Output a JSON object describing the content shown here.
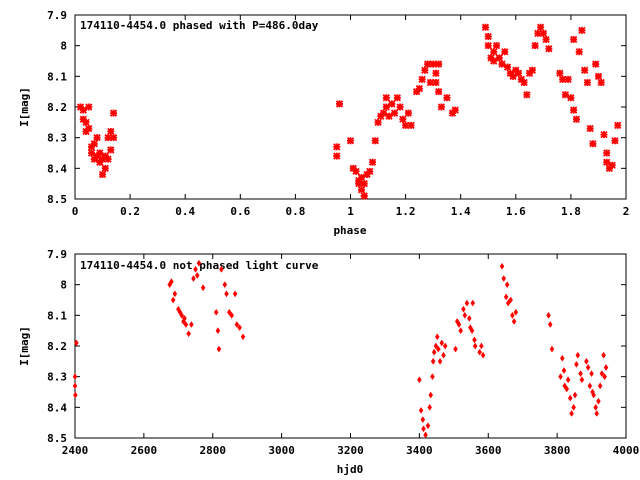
{
  "chart_data": [
    {
      "type": "scatter",
      "title": "174110-4454.0 phased with P=486.0day",
      "xlabel": "phase",
      "ylabel": "I[mag]",
      "xlim": [
        0,
        2
      ],
      "ylim": [
        8.5,
        7.9
      ],
      "xticks": [
        "0",
        "0.2",
        "0.4",
        "0.6",
        "0.8",
        "1",
        "1.2",
        "1.4",
        "1.6",
        "1.8",
        "2"
      ],
      "xtick_values": [
        0,
        0.2,
        0.4,
        0.6,
        0.8,
        1.0,
        1.2,
        1.4,
        1.6,
        1.8,
        2.0
      ],
      "yticks": [
        "7.9",
        "8",
        "8.1",
        "8.2",
        "8.3",
        "8.4",
        "8.5"
      ],
      "ytick_values": [
        7.9,
        8.0,
        8.1,
        8.2,
        8.3,
        8.4,
        8.5
      ],
      "grid": false,
      "marker_color": "#ff0000",
      "points": [
        [
          0.02,
          8.2
        ],
        [
          0.03,
          8.24
        ],
        [
          0.03,
          8.21
        ],
        [
          0.04,
          8.25
        ],
        [
          0.04,
          8.28
        ],
        [
          0.05,
          8.27
        ],
        [
          0.05,
          8.2
        ],
        [
          0.06,
          8.33
        ],
        [
          0.06,
          8.35
        ],
        [
          0.07,
          8.37
        ],
        [
          0.07,
          8.32
        ],
        [
          0.08,
          8.3
        ],
        [
          0.08,
          8.36
        ],
        [
          0.09,
          8.38
        ],
        [
          0.09,
          8.35
        ],
        [
          0.1,
          8.42
        ],
        [
          0.1,
          8.37
        ],
        [
          0.11,
          8.36
        ],
        [
          0.11,
          8.4
        ],
        [
          0.12,
          8.37
        ],
        [
          0.12,
          8.3
        ],
        [
          0.13,
          8.34
        ],
        [
          0.14,
          8.3
        ],
        [
          0.13,
          8.28
        ],
        [
          0.14,
          8.22
        ],
        [
          0.95,
          8.33
        ],
        [
          0.95,
          8.36
        ],
        [
          0.96,
          8.19
        ],
        [
          1.0,
          8.31
        ],
        [
          1.01,
          8.4
        ],
        [
          1.02,
          8.41
        ],
        [
          1.03,
          8.44
        ],
        [
          1.03,
          8.45
        ],
        [
          1.04,
          8.47
        ],
        [
          1.04,
          8.43
        ],
        [
          1.05,
          8.49
        ],
        [
          1.05,
          8.45
        ],
        [
          1.06,
          8.42
        ],
        [
          1.07,
          8.41
        ],
        [
          1.08,
          8.38
        ],
        [
          1.09,
          8.31
        ],
        [
          1.1,
          8.25
        ],
        [
          1.11,
          8.23
        ],
        [
          1.12,
          8.22
        ],
        [
          1.13,
          8.2
        ],
        [
          1.13,
          8.17
        ],
        [
          1.14,
          8.23
        ],
        [
          1.15,
          8.19
        ],
        [
          1.16,
          8.22
        ],
        [
          1.17,
          8.17
        ],
        [
          1.18,
          8.2
        ],
        [
          1.19,
          8.24
        ],
        [
          1.2,
          8.26
        ],
        [
          1.21,
          8.22
        ],
        [
          1.22,
          8.26
        ],
        [
          1.24,
          8.15
        ],
        [
          1.25,
          8.14
        ],
        [
          1.26,
          8.11
        ],
        [
          1.27,
          8.08
        ],
        [
          1.28,
          8.06
        ],
        [
          1.29,
          8.12
        ],
        [
          1.3,
          8.06
        ],
        [
          1.31,
          8.09
        ],
        [
          1.31,
          8.12
        ],
        [
          1.32,
          8.06
        ],
        [
          1.32,
          8.15
        ],
        [
          1.33,
          8.2
        ],
        [
          1.35,
          8.17
        ],
        [
          1.37,
          8.22
        ],
        [
          1.38,
          8.21
        ],
        [
          1.49,
          7.94
        ],
        [
          1.5,
          7.97
        ],
        [
          1.5,
          8.0
        ],
        [
          1.51,
          8.04
        ],
        [
          1.52,
          8.05
        ],
        [
          1.52,
          8.02
        ],
        [
          1.53,
          8.0
        ],
        [
          1.54,
          8.04
        ],
        [
          1.55,
          8.06
        ],
        [
          1.56,
          8.02
        ],
        [
          1.57,
          8.07
        ],
        [
          1.58,
          8.09
        ],
        [
          1.59,
          8.1
        ],
        [
          1.6,
          8.08
        ],
        [
          1.61,
          8.09
        ],
        [
          1.62,
          8.11
        ],
        [
          1.63,
          8.12
        ],
        [
          1.64,
          8.16
        ],
        [
          1.65,
          8.09
        ],
        [
          1.66,
          8.08
        ],
        [
          1.67,
          8.0
        ],
        [
          1.68,
          7.96
        ],
        [
          1.69,
          7.94
        ],
        [
          1.7,
          7.96
        ],
        [
          1.71,
          7.98
        ],
        [
          1.72,
          8.01
        ],
        [
          1.76,
          8.09
        ],
        [
          1.77,
          8.11
        ],
        [
          1.78,
          8.16
        ],
        [
          1.79,
          8.11
        ],
        [
          1.8,
          8.17
        ],
        [
          1.81,
          8.21
        ],
        [
          1.82,
          8.24
        ],
        [
          1.81,
          7.98
        ],
        [
          1.83,
          8.02
        ],
        [
          1.84,
          7.95
        ],
        [
          1.85,
          8.08
        ],
        [
          1.86,
          8.12
        ],
        [
          1.87,
          8.27
        ],
        [
          1.88,
          8.32
        ],
        [
          1.89,
          8.06
        ],
        [
          1.9,
          8.1
        ],
        [
          1.91,
          8.12
        ],
        [
          1.92,
          8.29
        ],
        [
          1.93,
          8.35
        ],
        [
          1.93,
          8.38
        ],
        [
          1.94,
          8.4
        ],
        [
          1.95,
          8.39
        ],
        [
          1.96,
          8.31
        ],
        [
          1.97,
          8.26
        ]
      ]
    },
    {
      "type": "scatter",
      "title": "174110-4454.0 not phased light curve",
      "xlabel": "hjd0",
      "ylabel": "I[mag]",
      "xlim": [
        2400,
        4000
      ],
      "ylim": [
        8.5,
        7.9
      ],
      "xticks": [
        "2400",
        "2600",
        "2800",
        "3000",
        "3200",
        "3400",
        "3600",
        "3800",
        "4000"
      ],
      "xtick_values": [
        2400,
        2600,
        2800,
        3000,
        3200,
        3400,
        3600,
        3800,
        4000
      ],
      "yticks": [
        "7.9",
        "8",
        "8.1",
        "8.2",
        "8.3",
        "8.4",
        "8.5"
      ],
      "ytick_values": [
        7.9,
        8.0,
        8.1,
        8.2,
        8.3,
        8.4,
        8.5
      ],
      "grid": false,
      "marker_color": "#ff0000",
      "points": [
        [
          2400,
          8.3
        ],
        [
          2400,
          8.33
        ],
        [
          2401,
          8.36
        ],
        [
          2404,
          8.19
        ],
        [
          2675,
          8.0
        ],
        [
          2680,
          7.99
        ],
        [
          2685,
          8.05
        ],
        [
          2690,
          8.03
        ],
        [
          2700,
          8.08
        ],
        [
          2705,
          8.09
        ],
        [
          2710,
          8.1
        ],
        [
          2715,
          8.12
        ],
        [
          2718,
          8.11
        ],
        [
          2722,
          8.13
        ],
        [
          2730,
          8.16
        ],
        [
          2738,
          8.13
        ],
        [
          2744,
          7.98
        ],
        [
          2750,
          7.95
        ],
        [
          2755,
          7.97
        ],
        [
          2760,
          7.93
        ],
        [
          2772,
          8.01
        ],
        [
          2810,
          8.09
        ],
        [
          2815,
          8.15
        ],
        [
          2818,
          8.21
        ],
        [
          2825,
          7.95
        ],
        [
          2835,
          8.0
        ],
        [
          2840,
          8.03
        ],
        [
          2848,
          8.09
        ],
        [
          2855,
          8.1
        ],
        [
          2865,
          8.03
        ],
        [
          2870,
          8.13
        ],
        [
          2878,
          8.14
        ],
        [
          2888,
          8.17
        ],
        [
          3400,
          8.31
        ],
        [
          3405,
          8.41
        ],
        [
          3410,
          8.44
        ],
        [
          3412,
          8.47
        ],
        [
          3418,
          8.49
        ],
        [
          3425,
          8.46
        ],
        [
          3430,
          8.4
        ],
        [
          3433,
          8.36
        ],
        [
          3438,
          8.3
        ],
        [
          3440,
          8.25
        ],
        [
          3443,
          8.22
        ],
        [
          3448,
          8.2
        ],
        [
          3452,
          8.17
        ],
        [
          3455,
          8.21
        ],
        [
          3460,
          8.25
        ],
        [
          3465,
          8.19
        ],
        [
          3470,
          8.23
        ],
        [
          3475,
          8.2
        ],
        [
          3505,
          8.21
        ],
        [
          3510,
          8.12
        ],
        [
          3515,
          8.13
        ],
        [
          3520,
          8.15
        ],
        [
          3528,
          8.08
        ],
        [
          3532,
          8.1
        ],
        [
          3538,
          8.06
        ],
        [
          3545,
          8.11
        ],
        [
          3548,
          8.14
        ],
        [
          3553,
          8.15
        ],
        [
          3555,
          8.06
        ],
        [
          3560,
          8.18
        ],
        [
          3562,
          8.2
        ],
        [
          3575,
          8.22
        ],
        [
          3580,
          8.2
        ],
        [
          3585,
          8.23
        ],
        [
          3640,
          7.94
        ],
        [
          3645,
          7.98
        ],
        [
          3652,
          8.04
        ],
        [
          3655,
          8.0
        ],
        [
          3658,
          8.06
        ],
        [
          3665,
          8.05
        ],
        [
          3670,
          8.1
        ],
        [
          3675,
          8.12
        ],
        [
          3680,
          8.09
        ],
        [
          3775,
          8.1
        ],
        [
          3780,
          8.13
        ],
        [
          3785,
          8.21
        ],
        [
          3810,
          8.3
        ],
        [
          3815,
          8.24
        ],
        [
          3820,
          8.28
        ],
        [
          3822,
          8.33
        ],
        [
          3828,
          8.34
        ],
        [
          3832,
          8.31
        ],
        [
          3838,
          8.37
        ],
        [
          3842,
          8.42
        ],
        [
          3848,
          8.4
        ],
        [
          3852,
          8.36
        ],
        [
          3856,
          8.26
        ],
        [
          3860,
          8.23
        ],
        [
          3868,
          8.29
        ],
        [
          3872,
          8.31
        ],
        [
          3885,
          8.25
        ],
        [
          3890,
          8.27
        ],
        [
          3895,
          8.33
        ],
        [
          3900,
          8.29
        ],
        [
          3903,
          8.35
        ],
        [
          3906,
          8.36
        ],
        [
          3912,
          8.4
        ],
        [
          3915,
          8.42
        ],
        [
          3920,
          8.38
        ],
        [
          3925,
          8.33
        ],
        [
          3930,
          8.29
        ],
        [
          3935,
          8.23
        ],
        [
          3938,
          8.3
        ],
        [
          3942,
          8.27
        ]
      ]
    }
  ]
}
